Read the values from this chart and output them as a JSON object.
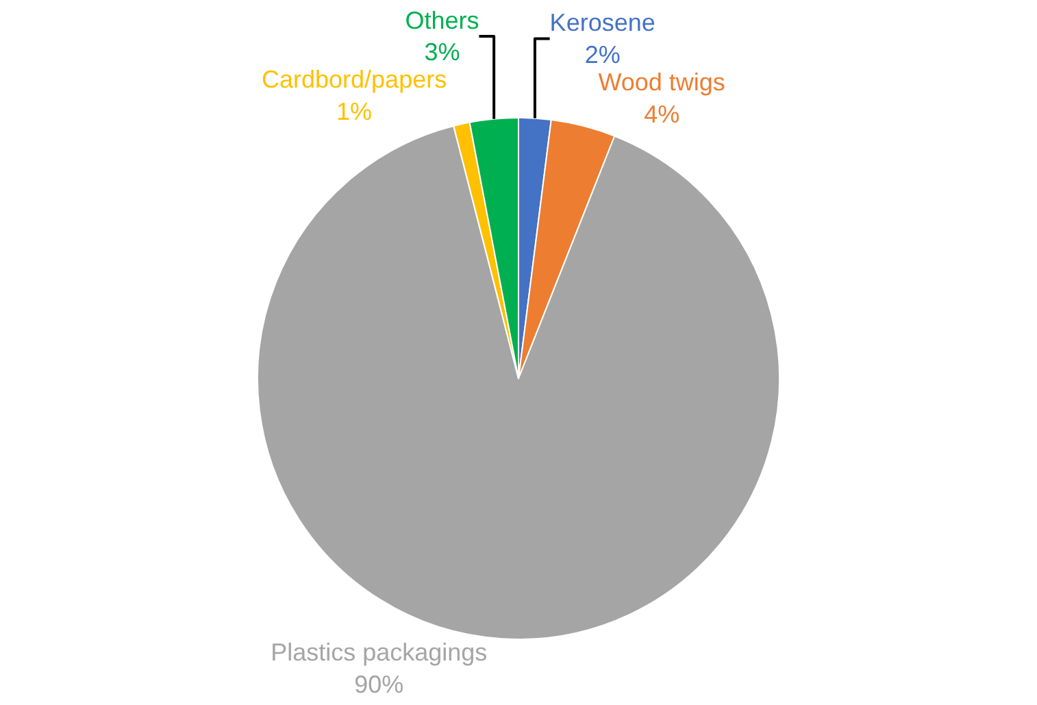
{
  "chart_data": {
    "type": "pie",
    "categories": [
      "Kerosene",
      "Wood twigs",
      "Plastics packagings",
      "Cardbord/papers",
      "Others"
    ],
    "values": [
      2,
      4,
      90,
      1,
      3
    ],
    "value_labels": [
      "2%",
      "4%",
      "90%",
      "1%",
      "3%"
    ],
    "colors": [
      "#4472c4",
      "#ed7d31",
      "#a5a5a5",
      "#ffc000",
      "#00b050"
    ],
    "legend": false
  }
}
